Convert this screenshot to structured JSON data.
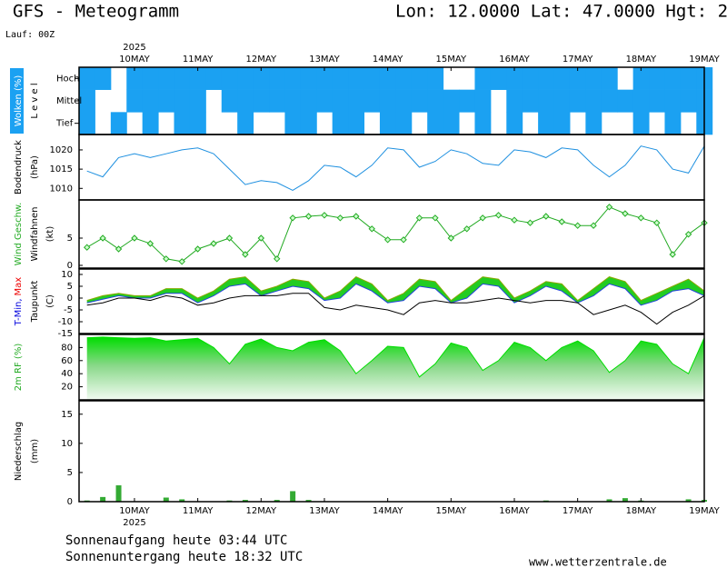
{
  "header": {
    "title": "GFS - Meteogramm",
    "location": "Lon: 12.0000 Lat: 47.0000 Hgt: 2",
    "run": "Lauf: 00Z"
  },
  "footer": {
    "sunrise": "Sonnenaufgang heute 03:44 UTC",
    "sunset": "Sonnenuntergang heute 18:32 UTC",
    "source": "www.wetterzentrale.de"
  },
  "chart_data": [
    {
      "type": "heatmap",
      "year": "2025",
      "ylabel": [
        [
          {
            "text": "Wolken (%)"
          }
        ],
        [
          {
            "text": "L e v e l"
          }
        ]
      ],
      "xlim": [
        -21,
        216
      ],
      "xticks": [
        {
          "value": 0,
          "label": "10MAY"
        },
        {
          "value": 24,
          "label": "11MAY"
        },
        {
          "value": 48,
          "label": "12MAY"
        },
        {
          "value": 72,
          "label": "13MAY"
        },
        {
          "value": 96,
          "label": "14MAY"
        },
        {
          "value": 120,
          "label": "15MAY"
        },
        {
          "value": 144,
          "label": "16MAY"
        },
        {
          "value": 168,
          "label": "17MAY"
        },
        {
          "value": 192,
          "label": "18MAY"
        },
        {
          "value": 216,
          "label": "19MAY"
        }
      ],
      "x": [
        -18,
        -12,
        -6,
        0,
        6,
        12,
        18,
        24,
        30,
        36,
        42,
        48,
        54,
        60,
        66,
        72,
        78,
        84,
        90,
        96,
        102,
        108,
        114,
        120,
        126,
        132,
        138,
        144,
        150,
        156,
        162,
        168,
        174,
        180,
        186,
        192,
        198,
        204,
        210,
        216
      ],
      "color": "#1ba1f2",
      "series": [
        {
          "name": "Hoch",
          "values": [
            100,
            100,
            0,
            100,
            100,
            100,
            100,
            100,
            100,
            100,
            100,
            100,
            100,
            100,
            100,
            100,
            100,
            100,
            100,
            100,
            100,
            100,
            100,
            0,
            0,
            100,
            100,
            100,
            100,
            100,
            100,
            100,
            100,
            100,
            0,
            100,
            100,
            100,
            100,
            100
          ]
        },
        {
          "name": "Mittel",
          "values": [
            100,
            0,
            0,
            100,
            100,
            100,
            100,
            100,
            0,
            100,
            100,
            100,
            100,
            100,
            100,
            100,
            100,
            100,
            100,
            100,
            100,
            100,
            100,
            100,
            100,
            100,
            0,
            100,
            100,
            100,
            100,
            100,
            100,
            100,
            100,
            100,
            100,
            100,
            100,
            100
          ]
        },
        {
          "name": "Tief",
          "values": [
            100,
            0,
            100,
            0,
            100,
            0,
            100,
            100,
            0,
            0,
            100,
            0,
            0,
            100,
            100,
            0,
            100,
            100,
            0,
            100,
            100,
            0,
            100,
            100,
            0,
            100,
            0,
            100,
            0,
            100,
            100,
            0,
            100,
            0,
            0,
            100,
            0,
            100,
            0,
            100
          ]
        }
      ]
    },
    {
      "type": "line",
      "ylabel": [
        [
          {
            "text": "Bodendruck"
          }
        ],
        [
          {
            "text": "(hPa)"
          }
        ]
      ],
      "xlim": [
        -21,
        216
      ],
      "ylim": [
        1007,
        1024
      ],
      "yticks": [
        1010,
        1015,
        1020
      ],
      "x": [
        -18,
        -12,
        -6,
        0,
        6,
        12,
        18,
        24,
        30,
        36,
        42,
        48,
        54,
        60,
        66,
        72,
        78,
        84,
        90,
        96,
        102,
        108,
        114,
        120,
        126,
        132,
        138,
        144,
        150,
        156,
        162,
        168,
        174,
        180,
        186,
        192,
        198,
        204,
        210,
        216
      ],
      "series": [
        {
          "color": "#1e90e0",
          "values": [
            1014.5,
            1013,
            1018,
            1019,
            1018,
            1019,
            1020,
            1020.5,
            1019,
            1015,
            1011,
            1012,
            1011.5,
            1009.5,
            1012,
            1016,
            1015.5,
            1013,
            1016,
            1020.5,
            1020,
            1015.5,
            1017,
            1020,
            1019,
            1016.5,
            1016,
            1020,
            1019.5,
            1018,
            1020.5,
            1020,
            1016,
            1013,
            1016,
            1021,
            1020,
            1015,
            1014,
            1021
          ]
        }
      ]
    },
    {
      "type": "line",
      "markers": true,
      "ylabel": [
        [
          {
            "text": "Wind Geschw.",
            "color": "#22aa22"
          }
        ],
        [
          {
            "text": "Windfahnen"
          }
        ],
        [
          {
            "text": "(kt)"
          }
        ]
      ],
      "xlim": [
        -21,
        216
      ],
      "ylim": [
        -0.5,
        12
      ],
      "yticks": [
        0,
        5
      ],
      "x": [
        -18,
        -12,
        -6,
        0,
        6,
        12,
        18,
        24,
        30,
        36,
        42,
        48,
        54,
        60,
        66,
        72,
        78,
        84,
        90,
        96,
        102,
        108,
        114,
        120,
        126,
        132,
        138,
        144,
        150,
        156,
        162,
        168,
        174,
        180,
        186,
        192,
        198,
        204,
        210,
        216
      ],
      "series": [
        {
          "color": "#22aa22",
          "values": [
            3.3,
            5,
            3,
            5,
            4,
            1.2,
            0.7,
            3,
            4,
            5,
            2,
            5,
            1.2,
            8.7,
            9,
            9.2,
            8.7,
            9,
            6.7,
            4.7,
            4.7,
            8.7,
            8.7,
            5,
            6.7,
            8.7,
            9.2,
            8.3,
            7.8,
            9,
            8,
            7.3,
            7.3,
            10.7,
            9.5,
            8.7,
            7.8,
            2,
            5.7,
            7.8
          ]
        }
      ]
    },
    {
      "type": "band",
      "ylabel": [
        [
          {
            "text": "T-Min,",
            "color": "#0000dd"
          },
          {
            "text": "Max",
            "color": "#ee0000"
          }
        ],
        [
          {
            "text": "Taupunkt"
          }
        ],
        [
          {
            "text": "(C)"
          }
        ]
      ],
      "xlim": [
        -21,
        216
      ],
      "ylim": [
        -15,
        12.3
      ],
      "yticks": [
        10,
        5,
        0,
        -5,
        -10,
        -15
      ],
      "x": [
        -18,
        -12,
        -6,
        0,
        6,
        12,
        18,
        24,
        30,
        36,
        42,
        48,
        54,
        60,
        66,
        72,
        78,
        84,
        90,
        96,
        102,
        108,
        114,
        120,
        126,
        132,
        138,
        144,
        150,
        156,
        162,
        168,
        174,
        180,
        186,
        192,
        198,
        204,
        210,
        216
      ],
      "fill": "#22cc22",
      "series": [
        {
          "color": "#88aa00",
          "values": [
            -1,
            1,
            2,
            1,
            1,
            4,
            4,
            0,
            3,
            8,
            9,
            3,
            5,
            8,
            7,
            0,
            3,
            9,
            6,
            -1,
            2,
            8,
            7,
            -1,
            4,
            9,
            8,
            0,
            3,
            7,
            6,
            -1,
            4,
            9,
            7,
            -1,
            2,
            5,
            8,
            3
          ]
        },
        {
          "color": "#2244dd",
          "values": [
            -2,
            -0.5,
            1,
            0,
            0,
            2,
            2,
            -2,
            1,
            5,
            6,
            1,
            3,
            5,
            4,
            -1,
            0,
            6,
            3,
            -2,
            -1,
            5,
            4,
            -2,
            0,
            6,
            5,
            -2,
            1,
            5,
            3,
            -2,
            1,
            6,
            4,
            -3,
            -1,
            3,
            4,
            1
          ]
        },
        {
          "color": "#000000",
          "values": [
            -3,
            -2,
            0,
            0,
            -1,
            1,
            0,
            -3,
            -2,
            0,
            1,
            1,
            1,
            2,
            2,
            -4,
            -5,
            -3,
            -4,
            -5,
            -7,
            -2,
            -1,
            -2,
            -2,
            -1,
            0,
            -1,
            -2,
            -1,
            -1,
            -2,
            -7,
            -5,
            -3,
            -6,
            -11,
            -6,
            -3,
            1
          ]
        }
      ]
    },
    {
      "type": "area",
      "ylabel": [
        [
          {
            "text": "2m RF (%)",
            "color": "#22aa22"
          }
        ]
      ],
      "xlim": [
        -21,
        216
      ],
      "ylim": [
        0,
        100
      ],
      "yticks": [
        20,
        40,
        60,
        80
      ],
      "x": [
        -18,
        -12,
        -6,
        0,
        6,
        12,
        18,
        24,
        30,
        36,
        42,
        48,
        54,
        60,
        66,
        72,
        78,
        84,
        90,
        96,
        102,
        108,
        114,
        120,
        126,
        132,
        138,
        144,
        150,
        156,
        162,
        168,
        174,
        180,
        186,
        192,
        198,
        204,
        210,
        216
      ],
      "series": [
        {
          "color": "#00dd00",
          "values": [
            95,
            96,
            95,
            94,
            95,
            90,
            92,
            94,
            80,
            55,
            85,
            93,
            80,
            75,
            88,
            92,
            75,
            40,
            60,
            82,
            80,
            35,
            55,
            87,
            80,
            45,
            60,
            88,
            80,
            60,
            80,
            90,
            75,
            42,
            60,
            90,
            85,
            55,
            40,
            95
          ]
        }
      ]
    },
    {
      "type": "bar",
      "year": "2025",
      "ylabel": [
        [
          {
            "text": "Niederschlag"
          }
        ],
        [
          {
            "text": "(mm)"
          }
        ]
      ],
      "xlim": [
        -21,
        216
      ],
      "ylim": [
        0,
        17.3
      ],
      "yticks": [
        0,
        5,
        10,
        15
      ],
      "xticks": [
        {
          "value": 0,
          "label": "10MAY"
        },
        {
          "value": 24,
          "label": "11MAY"
        },
        {
          "value": 48,
          "label": "12MAY"
        },
        {
          "value": 72,
          "label": "13MAY"
        },
        {
          "value": 96,
          "label": "14MAY"
        },
        {
          "value": 120,
          "label": "15MAY"
        },
        {
          "value": 144,
          "label": "16MAY"
        },
        {
          "value": 168,
          "label": "17MAY"
        },
        {
          "value": 192,
          "label": "18MAY"
        },
        {
          "value": 216,
          "label": "19MAY"
        }
      ],
      "x": [
        -18,
        -12,
        -6,
        0,
        6,
        12,
        18,
        24,
        30,
        36,
        42,
        48,
        54,
        60,
        66,
        72,
        78,
        84,
        90,
        96,
        102,
        108,
        114,
        120,
        126,
        132,
        138,
        144,
        150,
        156,
        162,
        168,
        174,
        180,
        186,
        192,
        198,
        204,
        210,
        216
      ],
      "series": [
        {
          "color": "#33aa33",
          "values": [
            0.2,
            0.8,
            2.8,
            0,
            0,
            0.7,
            0.4,
            0,
            0,
            0.2,
            0.3,
            0,
            0.3,
            1.8,
            0.3,
            0,
            0,
            0,
            0,
            0,
            0,
            0,
            0,
            0,
            0,
            0,
            0,
            0,
            0,
            0.2,
            0,
            0,
            0,
            0.4,
            0.6,
            0.2,
            0,
            0,
            0.4,
            0.3
          ]
        }
      ]
    }
  ]
}
